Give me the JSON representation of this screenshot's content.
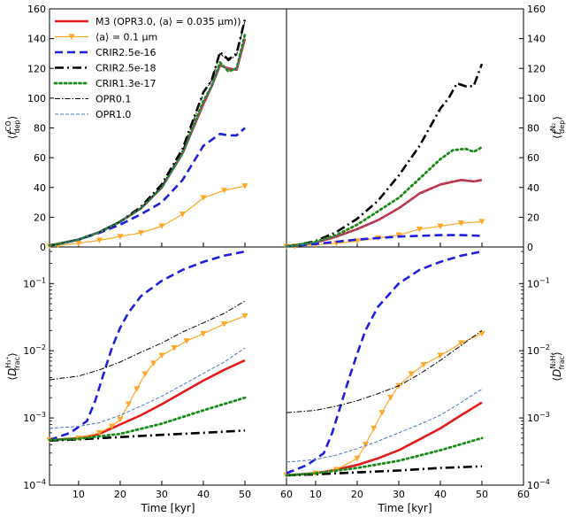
{
  "chart_data": {
    "type": "line",
    "x_unit": "kyr",
    "xlim": [
      3,
      60
    ],
    "xticks": [
      10,
      20,
      30,
      40,
      50,
      60
    ],
    "xlabel": "Time [kyr]",
    "grid": false,
    "legend": {
      "placement": "top-left",
      "entries": [
        {
          "key": "M3",
          "label": "M3 (OPR3.0, ⟨a⟩ = 0.035 μm))",
          "color": "#e41a1c",
          "style": "solid-thick"
        },
        {
          "key": "a01",
          "label": "⟨a⟩ = 0.1 μm",
          "color": "#ffa726",
          "style": "solid-triangle"
        },
        {
          "key": "CRIR25e16",
          "label": "CRIR2.5e-16",
          "color": "#1f1fe0",
          "style": "dashed"
        },
        {
          "key": "CRIR25e18",
          "label": "CRIR2.5e-18",
          "color": "#000000",
          "style": "dashdot"
        },
        {
          "key": "CRIR13e17",
          "label": "CRIR1.3e-17",
          "color": "#1a8a1a",
          "style": "dotted"
        },
        {
          "key": "OPR01",
          "label": "OPR0.1",
          "color": "#000000",
          "style": "thin-dashdot"
        },
        {
          "key": "OPR10",
          "label": "OPR1.0",
          "color": "#4a78c8",
          "style": "thin-dashed"
        }
      ]
    },
    "panels": [
      {
        "id": "top-left",
        "ylabel": "⟨f_dep^CO⟩",
        "yscale": "linear",
        "ylim": [
          0,
          160
        ],
        "yticks": [
          0,
          20,
          40,
          60,
          80,
          100,
          120,
          140,
          160
        ],
        "series": [
          {
            "key": "M3",
            "x": [
              3,
              5,
              10,
              15,
              20,
              25,
              30,
              35,
              40,
              42,
              44,
              46,
              48,
              50
            ],
            "y": [
              1,
              2,
              5,
              10,
              17,
              26,
              40,
              63,
              96,
              108,
              122,
              120,
              119,
              140
            ]
          },
          {
            "key": "a01",
            "x": [
              3,
              5,
              10,
              15,
              20,
              25,
              30,
              35,
              40,
              45,
              50
            ],
            "y": [
              0.5,
              1,
              2.5,
              4.5,
              7,
              9.5,
              14,
              22,
              33,
              38,
              41
            ]
          },
          {
            "key": "CRIR25e16",
            "x": [
              3,
              5,
              10,
              15,
              20,
              25,
              30,
              35,
              40,
              44,
              46,
              48,
              50
            ],
            "y": [
              1,
              2,
              5,
              9.5,
              15,
              22,
              30,
              45,
              68,
              76,
              75,
              75,
              80
            ]
          },
          {
            "key": "CRIR25e18",
            "x": [
              3,
              5,
              10,
              15,
              20,
              25,
              30,
              35,
              40,
              42,
              44,
              46,
              48,
              50
            ],
            "y": [
              1,
              2,
              5,
              10,
              17,
              27,
              42,
              66,
              104,
              112,
              131,
              126,
              130,
              153
            ]
          },
          {
            "key": "CRIR13e17",
            "x": [
              3,
              5,
              10,
              15,
              20,
              25,
              30,
              35,
              40,
              42,
              44,
              46,
              48,
              50
            ],
            "y": [
              1,
              2,
              5,
              10,
              17,
              26,
              40,
              63,
              98,
              108,
              124,
              118,
              120,
              143
            ]
          },
          {
            "key": "OPR01",
            "x": [
              3,
              5,
              10,
              15,
              20,
              25,
              30,
              35,
              40,
              42,
              44,
              46,
              48,
              50
            ],
            "y": [
              1,
              2,
              5,
              10,
              17,
              26,
              41,
              65,
              103,
              112,
              130,
              125,
              129,
              152
            ]
          },
          {
            "key": "OPR10",
            "x": [
              3,
              5,
              10,
              15,
              20,
              25,
              30,
              35,
              40,
              42,
              44,
              46,
              48,
              50
            ],
            "y": [
              1,
              2,
              5,
              10,
              17,
              26,
              40,
              63,
              96,
              108,
              122,
              120,
              119,
              140
            ]
          }
        ]
      },
      {
        "id": "top-right",
        "ylabel": "⟨f_dep^N2⟩",
        "yscale": "linear",
        "ylim": [
          0,
          160
        ],
        "yticks": [
          0,
          20,
          40,
          60,
          80,
          100,
          120,
          140,
          160
        ],
        "series": [
          {
            "key": "M3",
            "x": [
              3,
              5,
              10,
              15,
              20,
              25,
              30,
              35,
              40,
              45,
              48,
              50
            ],
            "y": [
              0.5,
              1,
              3,
              7,
              12,
              18,
              26,
              36,
              42,
              45,
              44,
              45
            ]
          },
          {
            "key": "a01",
            "x": [
              3,
              5,
              10,
              15,
              20,
              25,
              30,
              35,
              40,
              45,
              50
            ],
            "y": [
              0.2,
              0.5,
              1.5,
              2.5,
              4,
              6,
              8,
              12,
              14,
              16,
              17
            ]
          },
          {
            "key": "CRIR25e16",
            "x": [
              3,
              5,
              10,
              15,
              20,
              25,
              30,
              35,
              40,
              45,
              50
            ],
            "y": [
              0.3,
              0.8,
              2,
              3.5,
              5,
              6,
              7,
              7.5,
              8,
              8,
              7.5
            ]
          },
          {
            "key": "CRIR25e18",
            "x": [
              3,
              5,
              10,
              15,
              20,
              25,
              30,
              35,
              40,
              42,
              44,
              46,
              48,
              50
            ],
            "y": [
              0.5,
              1,
              4,
              10,
              19,
              31,
              48,
              68,
              93,
              100,
              110,
              108,
              108,
              123
            ]
          },
          {
            "key": "CRIR13e17",
            "x": [
              3,
              5,
              10,
              15,
              20,
              25,
              30,
              35,
              40,
              43,
              46,
              48,
              50
            ],
            "y": [
              0.5,
              1,
              3.5,
              8,
              15,
              24,
              33,
              46,
              59,
              65,
              66,
              64,
              67
            ]
          },
          {
            "key": "OPR10",
            "x": [
              3,
              5,
              10,
              15,
              20,
              25,
              30,
              35,
              40,
              45,
              48,
              50
            ],
            "y": [
              0.5,
              1,
              3,
              7,
              12,
              18,
              26,
              36,
              42,
              45,
              44,
              45
            ]
          }
        ]
      },
      {
        "id": "bottom-left",
        "ylabel": "⟨D_frac^H3+⟩",
        "yscale": "log",
        "ylim": [
          0.0001,
          0.35
        ],
        "yticks": [
          0.0001,
          0.001,
          0.01,
          0.1
        ],
        "ytick_labels": [
          "10^-4",
          "10^-3",
          "10^-2",
          "10^-1"
        ],
        "series": [
          {
            "key": "M3",
            "x": [
              3,
              10,
              15,
              20,
              25,
              30,
              35,
              40,
              45,
              50
            ],
            "y": [
              0.00047,
              0.0005,
              0.00058,
              0.0008,
              0.0011,
              0.0016,
              0.0024,
              0.0036,
              0.0052,
              0.0072
            ]
          },
          {
            "key": "a01",
            "x": [
              3,
              10,
              15,
              18,
              20,
              22,
              24,
              26,
              28,
              30,
              33,
              36,
              40,
              45,
              50
            ],
            "y": [
              0.00047,
              0.0005,
              0.0006,
              0.00075,
              0.00095,
              0.0016,
              0.0027,
              0.0045,
              0.0065,
              0.0085,
              0.011,
              0.014,
              0.018,
              0.025,
              0.033
            ]
          },
          {
            "key": "CRIR25e16",
            "x": [
              3,
              8,
              12,
              14,
              16,
              18,
              20,
              22,
              25,
              30,
              35,
              40,
              45,
              50
            ],
            "y": [
              0.00047,
              0.0006,
              0.0009,
              0.0018,
              0.0045,
              0.011,
              0.022,
              0.037,
              0.065,
              0.11,
              0.16,
              0.21,
              0.26,
              0.3
            ]
          },
          {
            "key": "CRIR25e18",
            "x": [
              3,
              10,
              20,
              30,
              40,
              50
            ],
            "y": [
              0.00046,
              0.00048,
              0.00052,
              0.00056,
              0.0006,
              0.00065
            ]
          },
          {
            "key": "CRIR13e17",
            "x": [
              3,
              10,
              20,
              30,
              40,
              50
            ],
            "y": [
              0.00047,
              0.00049,
              0.00058,
              0.00082,
              0.0013,
              0.002
            ]
          },
          {
            "key": "OPR01",
            "x": [
              3,
              10,
              15,
              20,
              25,
              30,
              35,
              40,
              45,
              50
            ],
            "y": [
              0.0037,
              0.0042,
              0.0052,
              0.0068,
              0.0095,
              0.013,
              0.019,
              0.026,
              0.036,
              0.055
            ]
          },
          {
            "key": "OPR10",
            "x": [
              3,
              10,
              15,
              20,
              25,
              30,
              35,
              40,
              45,
              50
            ],
            "y": [
              0.0007,
              0.00075,
              0.00085,
              0.0011,
              0.0015,
              0.0021,
              0.0031,
              0.0046,
              0.0068,
              0.011
            ]
          }
        ]
      },
      {
        "id": "bottom-right",
        "ylabel": "⟨D_frac^N2H+⟩",
        "yscale": "log",
        "ylim": [
          0.0001,
          0.35
        ],
        "yticks": [
          0.0001,
          0.001,
          0.01,
          0.1
        ],
        "ytick_labels": [
          "10^-4",
          "10^-3",
          "10^-2",
          "10^-1"
        ],
        "series": [
          {
            "key": "M3",
            "x": [
              3,
              10,
              15,
              20,
              25,
              30,
              35,
              40,
              45,
              50
            ],
            "y": [
              0.00014,
              0.00015,
              0.00017,
              0.0002,
              0.00025,
              0.00033,
              0.00048,
              0.0007,
              0.0011,
              0.0017
            ]
          },
          {
            "key": "a01",
            "x": [
              3,
              10,
              15,
              20,
              22,
              24,
              26,
              28,
              30,
              33,
              36,
              40,
              45,
              50
            ],
            "y": [
              0.00014,
              0.00015,
              0.00017,
              0.00025,
              0.0004,
              0.0007,
              0.0012,
              0.002,
              0.003,
              0.0045,
              0.0062,
              0.0085,
              0.013,
              0.018
            ]
          },
          {
            "key": "CRIR25e16",
            "x": [
              3,
              8,
              12,
              14,
              16,
              18,
              20,
              22,
              25,
              30,
              35,
              40,
              45,
              50
            ],
            "y": [
              0.00015,
              0.0002,
              0.0003,
              0.0006,
              0.0015,
              0.0038,
              0.009,
              0.02,
              0.045,
              0.1,
              0.16,
              0.21,
              0.26,
              0.3
            ]
          },
          {
            "key": "CRIR25e18",
            "x": [
              3,
              10,
              20,
              30,
              40,
              50
            ],
            "y": [
              0.00014,
              0.000145,
              0.000155,
              0.000165,
              0.00018,
              0.00019
            ]
          },
          {
            "key": "CRIR13e17",
            "x": [
              3,
              10,
              20,
              30,
              40,
              50
            ],
            "y": [
              0.00014,
              0.00015,
              0.00018,
              0.00023,
              0.00033,
              0.0005
            ]
          },
          {
            "key": "OPR01",
            "x": [
              3,
              10,
              15,
              20,
              25,
              30,
              35,
              40,
              45,
              50
            ],
            "y": [
              0.0012,
              0.0013,
              0.0015,
              0.0018,
              0.0023,
              0.003,
              0.0045,
              0.0072,
              0.012,
              0.02
            ]
          },
          {
            "key": "OPR10",
            "x": [
              3,
              10,
              15,
              20,
              25,
              30,
              35,
              40,
              45,
              50
            ],
            "y": [
              0.00022,
              0.00024,
              0.00028,
              0.00035,
              0.00045,
              0.0006,
              0.0008,
              0.0011,
              0.0017,
              0.0027
            ]
          }
        ]
      }
    ]
  }
}
